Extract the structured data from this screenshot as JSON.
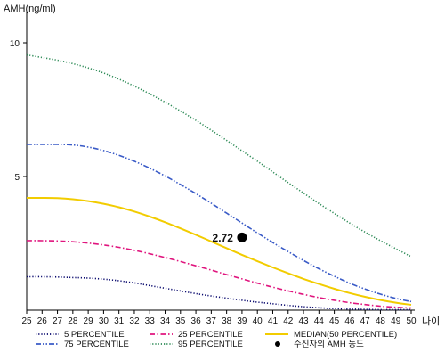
{
  "chart_data": {
    "type": "line",
    "title": "",
    "ylabel": "AMH(ng/ml)",
    "xlabel": "나이",
    "x": [
      25,
      26,
      27,
      28,
      29,
      30,
      31,
      32,
      33,
      34,
      35,
      36,
      37,
      38,
      39,
      40,
      41,
      42,
      43,
      44,
      45,
      46,
      47,
      48,
      49,
      50
    ],
    "x_ticks": [
      "25",
      "26",
      "27",
      "28",
      "29",
      "30",
      "31",
      "32",
      "33",
      "34",
      "35",
      "36",
      "37",
      "38",
      "39",
      "40",
      "41",
      "42",
      "43",
      "44",
      "45",
      "46",
      "47",
      "48",
      "49",
      "50"
    ],
    "y_ticks": [
      "5",
      "10"
    ],
    "y_tick_values": [
      5,
      10
    ],
    "xlim": [
      25,
      50
    ],
    "ylim": [
      0,
      11
    ],
    "grid": false,
    "series": [
      {
        "name": "5 PERCENTILE",
        "color": "#0a0a6e",
        "dash": "dotted",
        "values": [
          1.25,
          1.25,
          1.24,
          1.22,
          1.2,
          1.16,
          1.1,
          1.02,
          0.92,
          0.82,
          0.72,
          0.62,
          0.53,
          0.45,
          0.37,
          0.3,
          0.24,
          0.18,
          0.13,
          0.09,
          0.06,
          0.04,
          0.03,
          0.02,
          0.02,
          0.02
        ]
      },
      {
        "name": "25 PERCENTILE",
        "color": "#e0157e",
        "dash": "dashdot",
        "values": [
          2.6,
          2.6,
          2.59,
          2.56,
          2.51,
          2.44,
          2.35,
          2.24,
          2.11,
          1.97,
          1.82,
          1.66,
          1.5,
          1.33,
          1.17,
          1.01,
          0.86,
          0.72,
          0.59,
          0.47,
          0.37,
          0.28,
          0.21,
          0.15,
          0.11,
          0.08
        ]
      },
      {
        "name": "MEDIAN(50 PERCENTILE)",
        "color": "#f2cc00",
        "dash": "solid",
        "values": [
          4.2,
          4.2,
          4.19,
          4.15,
          4.08,
          3.98,
          3.85,
          3.69,
          3.5,
          3.29,
          3.06,
          2.82,
          2.57,
          2.32,
          2.07,
          1.83,
          1.6,
          1.38,
          1.17,
          0.98,
          0.8,
          0.64,
          0.5,
          0.38,
          0.28,
          0.2
        ]
      },
      {
        "name": "75 PERCENTILE",
        "color": "#3a5bc7",
        "dash": "dashdotdot",
        "values": [
          6.2,
          6.2,
          6.2,
          6.18,
          6.1,
          5.97,
          5.79,
          5.57,
          5.31,
          5.02,
          4.7,
          4.36,
          4.0,
          3.63,
          3.26,
          2.89,
          2.53,
          2.19,
          1.86,
          1.55,
          1.27,
          1.01,
          0.79,
          0.6,
          0.44,
          0.32
        ]
      },
      {
        "name": "95 PERCENTILE",
        "color": "#2e8b57",
        "dash": "dotted",
        "values": [
          9.55,
          9.45,
          9.35,
          9.22,
          9.06,
          8.87,
          8.64,
          8.38,
          8.09,
          7.78,
          7.45,
          7.1,
          6.73,
          6.35,
          5.96,
          5.57,
          5.17,
          4.77,
          4.38,
          3.99,
          3.62,
          3.26,
          2.92,
          2.6,
          2.3,
          2.0
        ]
      }
    ],
    "highlight_point": {
      "name": "수진자의 AMH 농도",
      "x": 39,
      "y": 2.72,
      "label": "2.72",
      "color": "#000000"
    },
    "legend_position": "bottom"
  }
}
